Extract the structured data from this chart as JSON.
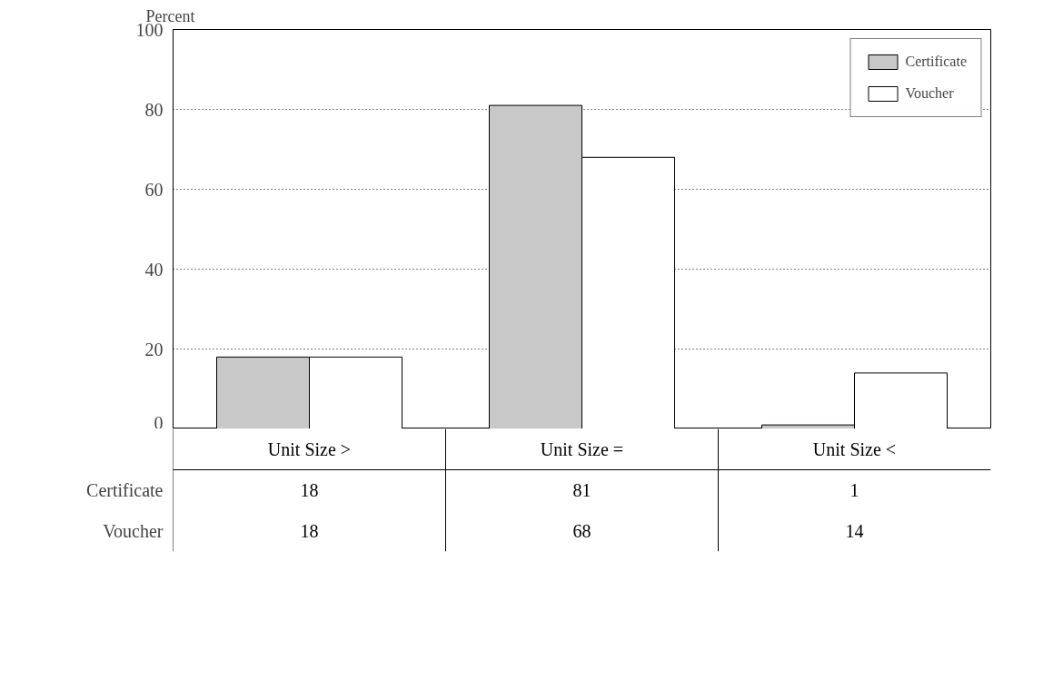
{
  "chart_data": {
    "type": "bar",
    "ylabel": "Percent",
    "categories": [
      "Unit Size >",
      "Unit Size =",
      "Unit Size <"
    ],
    "series": [
      {
        "name": "Certificate",
        "color": "#c8c8c8",
        "values": [
          18,
          81,
          1
        ]
      },
      {
        "name": "Voucher",
        "color": "#ffffff",
        "values": [
          18,
          68,
          14
        ]
      }
    ],
    "ylim": [
      0,
      100
    ],
    "yticks": [
      0,
      20,
      40,
      60,
      80,
      100
    ],
    "grid": "y",
    "legend": "top right",
    "data_labels": true
  }
}
